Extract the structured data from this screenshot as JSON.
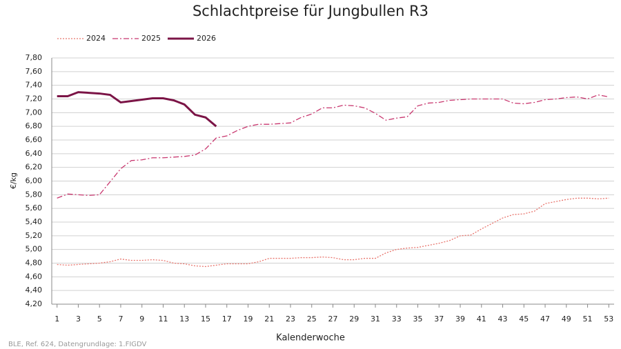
{
  "chart_data": {
    "type": "line",
    "title": "Schlachtpreise für Jungbullen R3",
    "y_label": "€/kg",
    "x_label": "Kalenderwoche",
    "source": "BLE, Ref. 624, Datengrundlage: 1.FIGDV",
    "x": [
      1,
      2,
      3,
      4,
      5,
      6,
      7,
      8,
      9,
      10,
      11,
      12,
      13,
      14,
      15,
      16,
      17,
      18,
      19,
      20,
      21,
      22,
      23,
      24,
      25,
      26,
      27,
      28,
      29,
      30,
      31,
      32,
      33,
      34,
      35,
      36,
      37,
      38,
      39,
      40,
      41,
      42,
      43,
      44,
      45,
      46,
      47,
      48,
      49,
      50,
      51,
      52,
      53
    ],
    "xlim": [
      0.5,
      53.5
    ],
    "xticks": [
      1,
      3,
      5,
      7,
      9,
      11,
      13,
      15,
      17,
      19,
      21,
      23,
      25,
      27,
      29,
      31,
      33,
      35,
      37,
      39,
      41,
      43,
      45,
      47,
      49,
      51,
      53
    ],
    "ylim": [
      4.2,
      7.8
    ],
    "yticks": [
      {
        "value": 4.2,
        "label": "4,20"
      },
      {
        "value": 4.4,
        "label": "4,40"
      },
      {
        "value": 4.6,
        "label": "4,60"
      },
      {
        "value": 4.8,
        "label": "4,80"
      },
      {
        "value": 5.0,
        "label": "5,00"
      },
      {
        "value": 5.2,
        "label": "5,20"
      },
      {
        "value": 5.4,
        "label": "5,40"
      },
      {
        "value": 5.6,
        "label": "5,60"
      },
      {
        "value": 5.8,
        "label": "5,80"
      },
      {
        "value": 6.0,
        "label": "6,00"
      },
      {
        "value": 6.2,
        "label": "6,20"
      },
      {
        "value": 6.4,
        "label": "6,40"
      },
      {
        "value": 6.6,
        "label": "6,60"
      },
      {
        "value": 6.8,
        "label": "6,80"
      },
      {
        "value": 7.0,
        "label": "7,00"
      },
      {
        "value": 7.2,
        "label": "7,20"
      },
      {
        "value": 7.4,
        "label": "7,40"
      },
      {
        "value": 7.6,
        "label": "7,60"
      },
      {
        "value": 7.8,
        "label": "7,80"
      }
    ],
    "grid": true,
    "legend": "top-left",
    "series": [
      {
        "name": "2024",
        "color": "#e8736b",
        "style": "dotted",
        "values": [
          4.78,
          4.77,
          4.78,
          4.79,
          4.8,
          4.82,
          4.86,
          4.84,
          4.84,
          4.85,
          4.84,
          4.8,
          4.79,
          4.76,
          4.75,
          4.77,
          4.79,
          4.79,
          4.79,
          4.82,
          4.87,
          4.87,
          4.87,
          4.88,
          4.88,
          4.89,
          4.88,
          4.85,
          4.85,
          4.87,
          4.87,
          4.95,
          5.0,
          5.02,
          5.03,
          5.06,
          5.09,
          5.13,
          5.2,
          5.21,
          5.3,
          5.38,
          5.46,
          5.51,
          5.52,
          5.56,
          5.67,
          5.7,
          5.73,
          5.75,
          5.75,
          5.74,
          5.75
        ]
      },
      {
        "name": "2025",
        "color": "#c8366e",
        "style": "dashdot",
        "values": [
          5.75,
          5.81,
          5.8,
          5.79,
          5.8,
          5.99,
          6.18,
          6.3,
          6.31,
          6.34,
          6.34,
          6.35,
          6.36,
          6.38,
          6.47,
          6.63,
          6.66,
          6.74,
          6.8,
          6.83,
          6.83,
          6.84,
          6.85,
          6.93,
          6.98,
          7.07,
          7.07,
          7.11,
          7.1,
          7.07,
          6.99,
          6.89,
          6.92,
          6.94,
          7.1,
          7.14,
          7.15,
          7.18,
          7.19,
          7.2,
          7.2,
          7.2,
          7.2,
          7.14,
          7.13,
          7.15,
          7.19,
          7.2,
          7.22,
          7.23,
          7.2,
          7.26,
          7.23
        ]
      },
      {
        "name": "2026",
        "color": "#7b1446",
        "style": "solid",
        "values": [
          7.24,
          7.24,
          7.3,
          7.29,
          7.28,
          7.26,
          7.15,
          7.17,
          7.19,
          7.21,
          7.21,
          7.18,
          7.12,
          6.97,
          6.93,
          6.8,
          null,
          null,
          null,
          null,
          null,
          null,
          null,
          null,
          null,
          null,
          null,
          null,
          null,
          null,
          null,
          null,
          null,
          null,
          null,
          null,
          null,
          null,
          null,
          null,
          null,
          null,
          null,
          null,
          null,
          null,
          null,
          null,
          null,
          null,
          null,
          null,
          null
        ]
      }
    ]
  }
}
